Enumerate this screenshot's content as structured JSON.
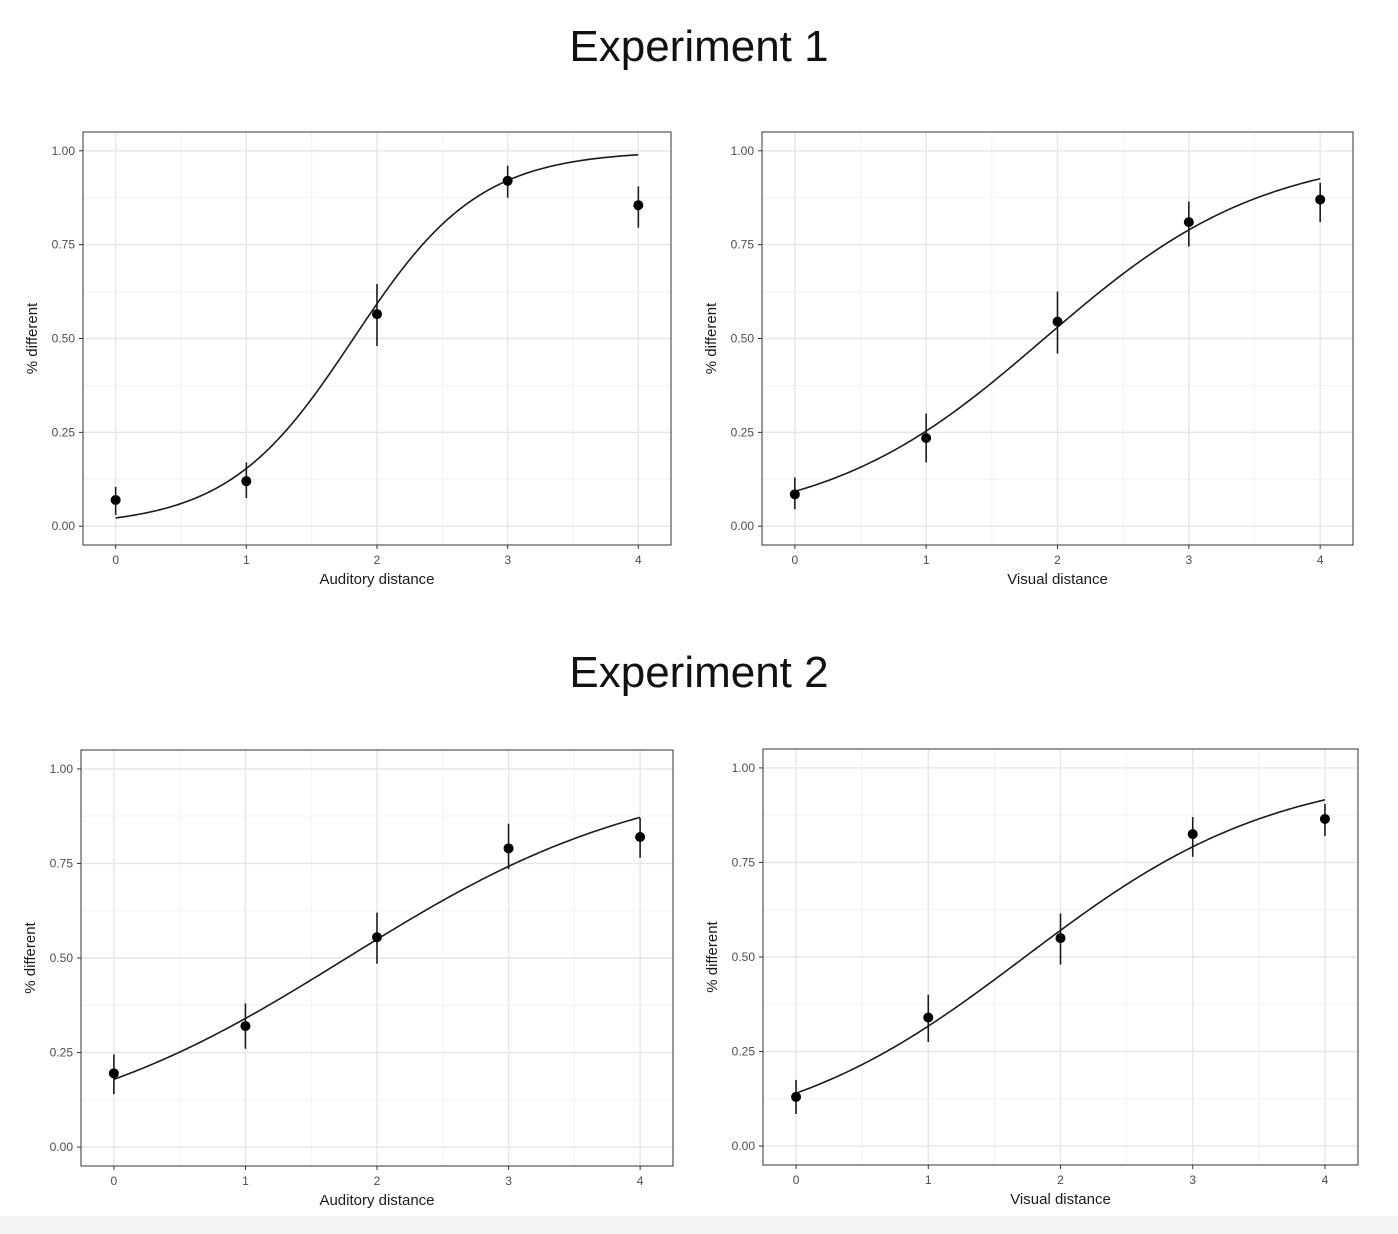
{
  "experiments": [
    {
      "title": "Experiment 1"
    },
    {
      "title": "Experiment 2"
    }
  ],
  "chart_data": [
    {
      "type": "scatter",
      "experiment": "Experiment 1",
      "xlabel": "Auditory distance",
      "ylabel": "% different",
      "x_ticks": [
        "0",
        "1",
        "2",
        "3",
        "4"
      ],
      "y_ticks": [
        "0.00",
        "0.25",
        "0.50",
        "0.75",
        "1.00"
      ],
      "xlim": [
        -0.25,
        4.25
      ],
      "ylim": [
        -0.05,
        1.05
      ],
      "grid": true,
      "points": [
        {
          "x": 0,
          "y": 0.07,
          "lo": 0.03,
          "hi": 0.105
        },
        {
          "x": 1,
          "y": 0.12,
          "lo": 0.075,
          "hi": 0.17
        },
        {
          "x": 2,
          "y": 0.565,
          "lo": 0.48,
          "hi": 0.645
        },
        {
          "x": 3,
          "y": 0.92,
          "lo": 0.875,
          "hi": 0.96
        },
        {
          "x": 4,
          "y": 0.855,
          "lo": 0.795,
          "hi": 0.905
        }
      ],
      "fit": {
        "model": "logistic",
        "x0": 1.82,
        "k": 2.08
      }
    },
    {
      "type": "scatter",
      "experiment": "Experiment 1",
      "xlabel": "Visual distance",
      "ylabel": "% different",
      "x_ticks": [
        "0",
        "1",
        "2",
        "3",
        "4"
      ],
      "y_ticks": [
        "0.00",
        "0.25",
        "0.50",
        "0.75",
        "1.00"
      ],
      "xlim": [
        -0.25,
        4.25
      ],
      "ylim": [
        -0.05,
        1.05
      ],
      "grid": true,
      "points": [
        {
          "x": 0,
          "y": 0.085,
          "lo": 0.045,
          "hi": 0.13
        },
        {
          "x": 1,
          "y": 0.235,
          "lo": 0.17,
          "hi": 0.3
        },
        {
          "x": 2,
          "y": 0.545,
          "lo": 0.46,
          "hi": 0.625
        },
        {
          "x": 3,
          "y": 0.81,
          "lo": 0.745,
          "hi": 0.865
        },
        {
          "x": 4,
          "y": 0.87,
          "lo": 0.81,
          "hi": 0.915
        }
      ],
      "fit": {
        "model": "logistic",
        "x0": 1.9,
        "k": 1.2
      }
    },
    {
      "type": "scatter",
      "experiment": "Experiment 2",
      "xlabel": "Auditory distance",
      "ylabel": "% different",
      "x_ticks": [
        "0",
        "1",
        "2",
        "3",
        "4"
      ],
      "y_ticks": [
        "0.00",
        "0.25",
        "0.50",
        "0.75",
        "1.00"
      ],
      "xlim": [
        -0.25,
        4.25
      ],
      "ylim": [
        -0.05,
        1.05
      ],
      "grid": true,
      "points": [
        {
          "x": 0,
          "y": 0.195,
          "lo": 0.14,
          "hi": 0.245
        },
        {
          "x": 1,
          "y": 0.32,
          "lo": 0.26,
          "hi": 0.38
        },
        {
          "x": 2,
          "y": 0.555,
          "lo": 0.485,
          "hi": 0.62
        },
        {
          "x": 3,
          "y": 0.79,
          "lo": 0.735,
          "hi": 0.855
        },
        {
          "x": 4,
          "y": 0.82,
          "lo": 0.765,
          "hi": 0.87
        }
      ],
      "fit": {
        "model": "logistic",
        "x0": 1.77,
        "k": 0.86
      }
    },
    {
      "type": "scatter",
      "experiment": "Experiment 2",
      "xlabel": "Visual distance",
      "ylabel": "% different",
      "x_ticks": [
        "0",
        "1",
        "2",
        "3",
        "4"
      ],
      "y_ticks": [
        "0.00",
        "0.25",
        "0.50",
        "0.75",
        "1.00"
      ],
      "xlim": [
        -0.25,
        4.25
      ],
      "ylim": [
        -0.05,
        1.05
      ],
      "grid": true,
      "points": [
        {
          "x": 0,
          "y": 0.13,
          "lo": 0.085,
          "hi": 0.175
        },
        {
          "x": 1,
          "y": 0.34,
          "lo": 0.275,
          "hi": 0.4
        },
        {
          "x": 2,
          "y": 0.55,
          "lo": 0.48,
          "hi": 0.615
        },
        {
          "x": 3,
          "y": 0.825,
          "lo": 0.765,
          "hi": 0.87
        },
        {
          "x": 4,
          "y": 0.865,
          "lo": 0.82,
          "hi": 0.905
        }
      ],
      "fit": {
        "model": "logistic",
        "x0": 1.73,
        "k": 1.05
      }
    }
  ]
}
